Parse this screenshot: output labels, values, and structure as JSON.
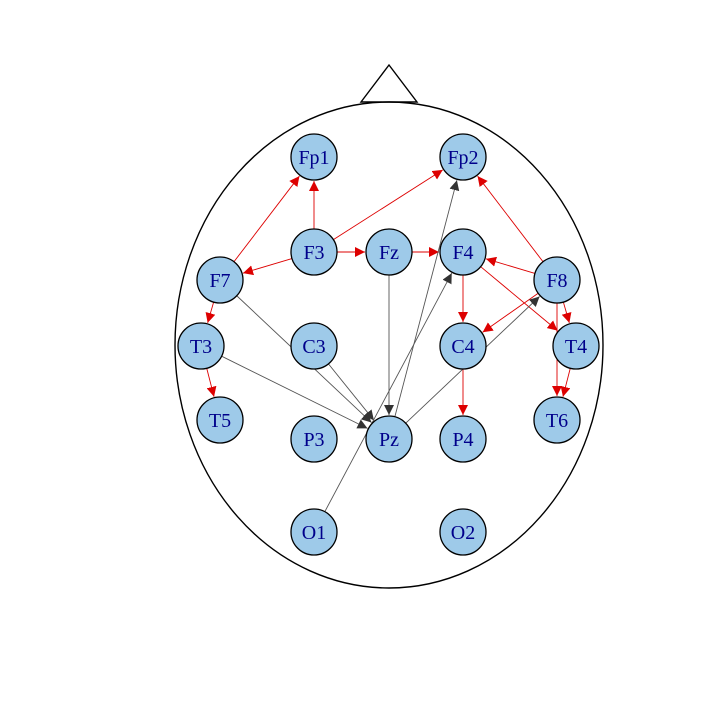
{
  "colors": {
    "node_fill": "#9ecae9",
    "node_stroke": "#000000",
    "label": "#00008b",
    "edge_red": "#dd0000",
    "edge_gray": "#555555",
    "arrow_gray": "#333333",
    "head_outline": "#000000"
  },
  "nodes": [
    {
      "id": "Fp1",
      "label": "Fp1"
    },
    {
      "id": "Fp2",
      "label": "Fp2"
    },
    {
      "id": "F7",
      "label": "F7"
    },
    {
      "id": "F3",
      "label": "F3"
    },
    {
      "id": "Fz",
      "label": "Fz"
    },
    {
      "id": "F4",
      "label": "F4"
    },
    {
      "id": "F8",
      "label": "F8"
    },
    {
      "id": "T3",
      "label": "T3"
    },
    {
      "id": "C3",
      "label": "C3"
    },
    {
      "id": "C4",
      "label": "C4"
    },
    {
      "id": "T4",
      "label": "T4"
    },
    {
      "id": "T5",
      "label": "T5"
    },
    {
      "id": "P3",
      "label": "P3"
    },
    {
      "id": "Pz",
      "label": "Pz"
    },
    {
      "id": "P4",
      "label": "P4"
    },
    {
      "id": "T6",
      "label": "T6"
    },
    {
      "id": "O1",
      "label": "O1"
    },
    {
      "id": "O2",
      "label": "O2"
    }
  ],
  "edges": [
    {
      "from": "F3",
      "to": "Fp1",
      "type": "red"
    },
    {
      "from": "F7",
      "to": "Fp1",
      "type": "red"
    },
    {
      "from": "F3",
      "to": "Fp2",
      "type": "red"
    },
    {
      "from": "F3",
      "to": "F7",
      "type": "red"
    },
    {
      "from": "F3",
      "to": "Fz",
      "type": "red"
    },
    {
      "from": "Fz",
      "to": "F4",
      "type": "red"
    },
    {
      "from": "F8",
      "to": "Fp2",
      "type": "red"
    },
    {
      "from": "F8",
      "to": "F4",
      "type": "red"
    },
    {
      "from": "F4",
      "to": "C4",
      "type": "red"
    },
    {
      "from": "F4",
      "to": "T4",
      "type": "red"
    },
    {
      "from": "F8",
      "to": "C4",
      "type": "red"
    },
    {
      "from": "F8",
      "to": "T4",
      "type": "red"
    },
    {
      "from": "F8",
      "to": "T6",
      "type": "red"
    },
    {
      "from": "T4",
      "to": "T6",
      "type": "red"
    },
    {
      "from": "C4",
      "to": "P4",
      "type": "red"
    },
    {
      "from": "F7",
      "to": "T3",
      "type": "red"
    },
    {
      "from": "T3",
      "to": "T5",
      "type": "red"
    },
    {
      "from": "F7",
      "to": "Pz",
      "type": "gray"
    },
    {
      "from": "T3",
      "to": "Pz",
      "type": "gray"
    },
    {
      "from": "C3",
      "to": "Pz",
      "type": "gray"
    },
    {
      "from": "Fz",
      "to": "Pz",
      "type": "gray"
    },
    {
      "from": "Pz",
      "to": "Fp2",
      "type": "gray"
    },
    {
      "from": "O1",
      "to": "F4",
      "type": "gray"
    },
    {
      "from": "Pz",
      "to": "F8",
      "type": "gray"
    }
  ]
}
